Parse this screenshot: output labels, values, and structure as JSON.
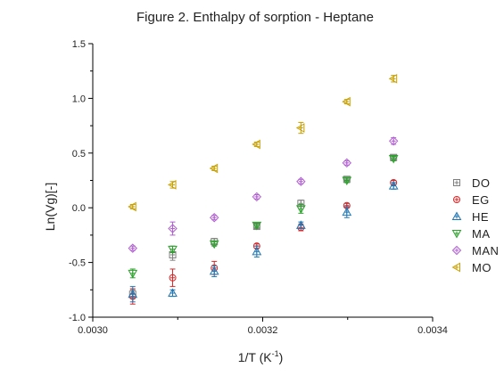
{
  "chart_data": {
    "type": "scatter",
    "title": "Figure 2. Enthalpy of sorption - Heptane",
    "xlabel": "1/T (K",
    "xlabel_sup": "-1",
    "xlabel_suffix": ")",
    "ylabel": "Ln(Vg)[-]",
    "xlim": [
      0.003,
      0.0034
    ],
    "ylim": [
      -1.0,
      1.5
    ],
    "xticks": [
      {
        "value": 0.003,
        "label": "0.0030"
      },
      {
        "value": 0.0032,
        "label": "0.0032"
      },
      {
        "value": 0.0034,
        "label": "0.0034"
      }
    ],
    "yticks": [
      {
        "value": -1.0,
        "label": "-1.0"
      },
      {
        "value": -0.5,
        "label": "-0.5"
      },
      {
        "value": 0.0,
        "label": "0.0"
      },
      {
        "value": 0.5,
        "label": "0.5"
      },
      {
        "value": 1.0,
        "label": "1.0"
      },
      {
        "value": 1.5,
        "label": "1.5"
      }
    ],
    "grid": false,
    "legend_position": "right",
    "x": [
      0.003047,
      0.003094,
      0.003143,
      0.003193,
      0.003245,
      0.003299,
      0.003354
    ],
    "series": [
      {
        "name": "DO",
        "marker": "square-plus",
        "color": "#7f7f7f",
        "values": [
          -0.79,
          -0.43,
          -0.31,
          -0.17,
          0.04,
          0.26,
          0.46
        ],
        "errors": [
          0.04,
          0.05,
          0.03,
          0.02,
          0.03,
          0.02,
          0.02
        ]
      },
      {
        "name": "EG",
        "marker": "circle-plus",
        "color": "#d62728",
        "values": [
          -0.81,
          -0.64,
          -0.55,
          -0.35,
          -0.18,
          0.02,
          0.23
        ],
        "errors": [
          0.07,
          0.08,
          0.06,
          0.02,
          0.03,
          0.02,
          0.02
        ]
      },
      {
        "name": "HE",
        "marker": "triangle-up-plus",
        "color": "#1f77b4",
        "values": [
          -0.79,
          -0.78,
          -0.58,
          -0.4,
          -0.16,
          -0.04,
          0.2
        ],
        "errors": [
          0.07,
          0.03,
          0.05,
          0.05,
          0.03,
          0.05,
          0.03
        ]
      },
      {
        "name": "MA",
        "marker": "triangle-down-plus",
        "color": "#2ca02c",
        "values": [
          -0.6,
          -0.38,
          -0.33,
          -0.16,
          -0.01,
          0.25,
          0.45
        ],
        "errors": [
          0.04,
          0.03,
          0.02,
          0.02,
          0.04,
          0.02,
          0.02
        ]
      },
      {
        "name": "MAN",
        "marker": "diamond-plus",
        "color": "#b05fd0",
        "values": [
          -0.37,
          -0.19,
          -0.09,
          0.1,
          0.24,
          0.41,
          0.61
        ],
        "errors": [
          0.02,
          0.06,
          0.02,
          0.02,
          0.02,
          0.02,
          0.03
        ]
      },
      {
        "name": "MO",
        "marker": "triangle-left-plus",
        "color": "#c8a000",
        "values": [
          0.01,
          0.21,
          0.36,
          0.58,
          0.73,
          0.97,
          1.18
        ],
        "errors": [
          0.02,
          0.03,
          0.02,
          0.02,
          0.05,
          0.02,
          0.03
        ]
      }
    ]
  }
}
